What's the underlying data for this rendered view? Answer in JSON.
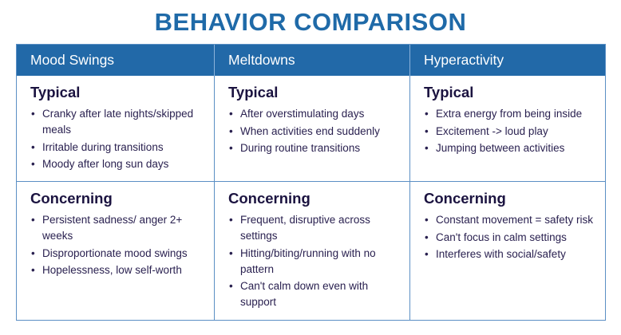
{
  "title": "BEHAVIOR COMPARISON",
  "columns": [
    {
      "header": "Mood Swings",
      "typical_label": "Typical",
      "typical": [
        "Cranky after late nights/skipped meals",
        "Irritable during transitions",
        "Moody after long sun days"
      ],
      "concerning_label": "Concerning",
      "concerning": [
        "Persistent sadness/ anger 2+ weeks",
        "Disproportionate mood swings",
        "Hopelessness, low self-worth"
      ]
    },
    {
      "header": "Meltdowns",
      "typical_label": "Typical",
      "typical": [
        "After overstimulating days",
        "When activities end suddenly",
        "During routine transitions"
      ],
      "concerning_label": "Concerning",
      "concerning": [
        "Frequent, disruptive across settings",
        "Hitting/biting/running with no pattern",
        "Can't calm down even with support"
      ]
    },
    {
      "header": "Hyperactivity",
      "typical_label": "Typical",
      "typical": [
        "Extra energy from being inside",
        "Excitement -> loud play",
        "Jumping between activities"
      ],
      "concerning_label": "Concerning",
      "concerning": [
        "Constant movement = safety risk",
        "Can't focus in calm settings",
        "Interferes with social/safety"
      ]
    }
  ],
  "colors": {
    "title": "#1f6aa8",
    "header_bg": "#2269a8",
    "border": "#5b8fc4",
    "text": "#1b1340"
  }
}
